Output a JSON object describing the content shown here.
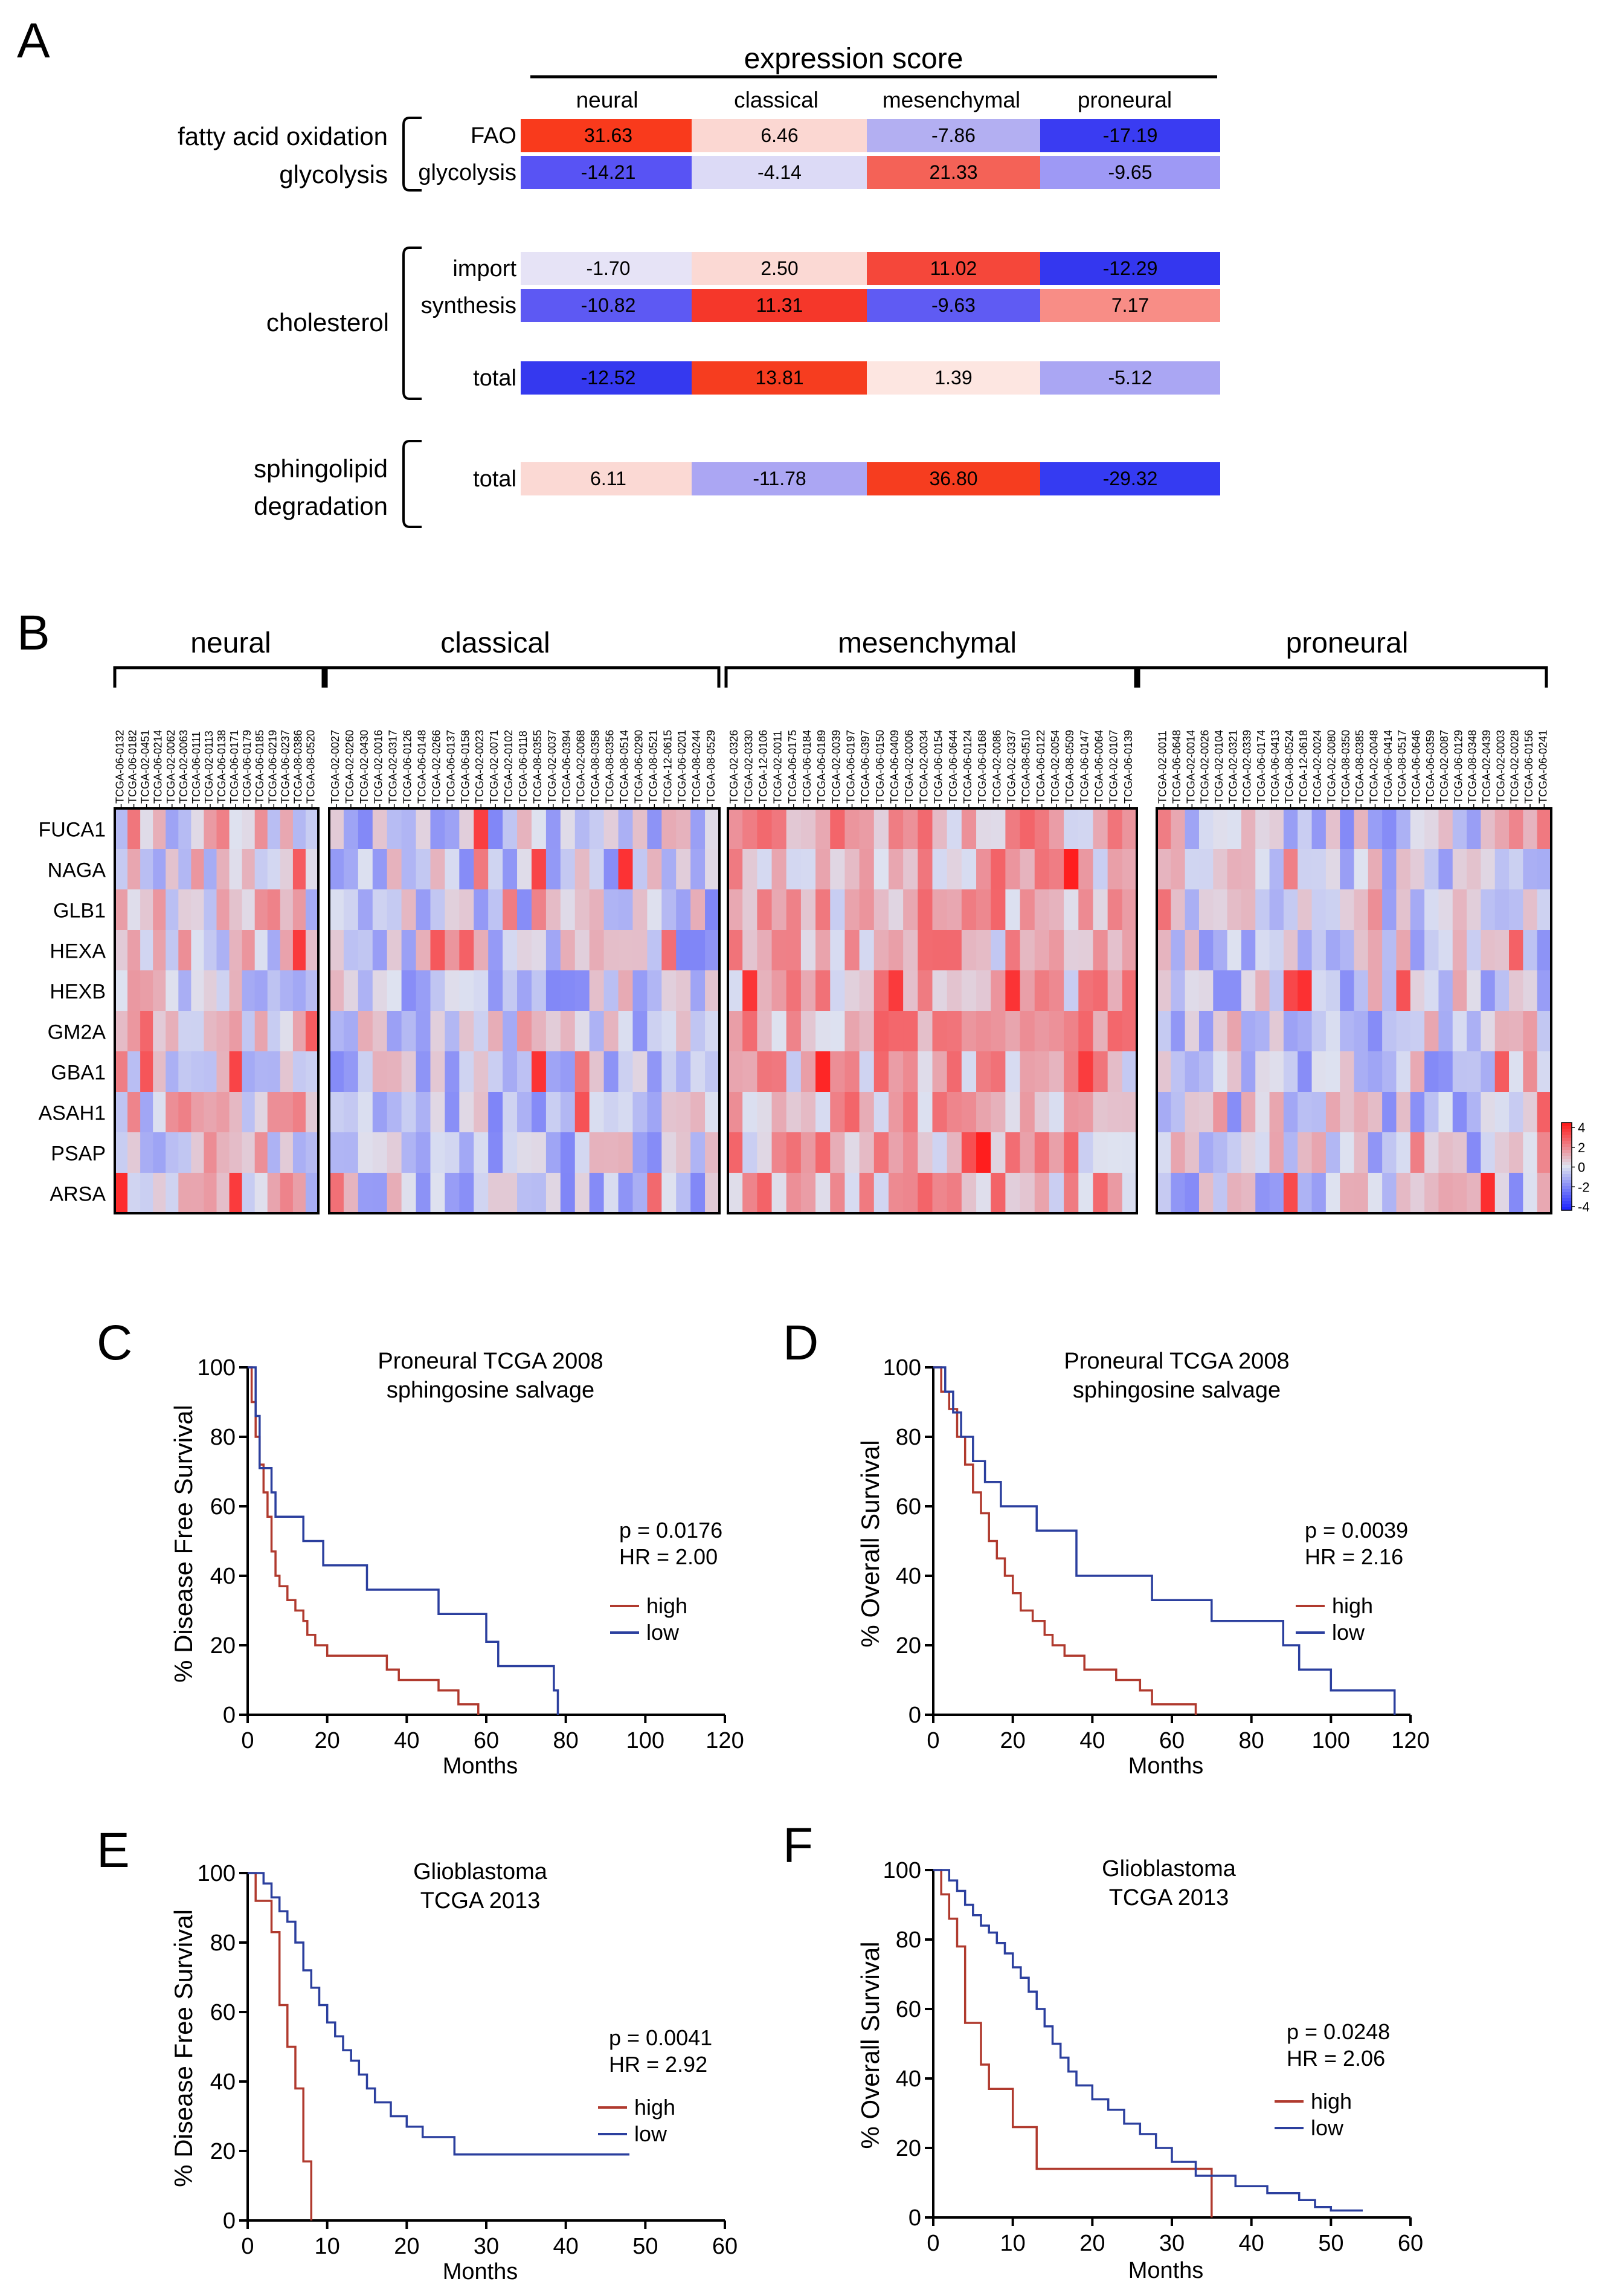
{
  "panel_a": {
    "letter": "A",
    "header": "expression score",
    "columns": [
      "neural",
      "classical",
      "mesenchymal",
      "proneural"
    ],
    "groups": [
      {
        "labels": [
          "fatty acid oxidation",
          "glycolysis"
        ],
        "rows": [
          {
            "label": "FAO",
            "values": [
              "31.63",
              "6.46",
              "-7.86",
              "-17.19"
            ],
            "colors": [
              "#f93a1c",
              "#fbd7d2",
              "#b3aff2",
              "#3a3cf2"
            ]
          },
          {
            "label": "glycolysis",
            "values": [
              "-14.21",
              "-4.14",
              "21.33",
              "-9.65"
            ],
            "colors": [
              "#5853f4",
              "#dcdaf6",
              "#f46257",
              "#9e99f5"
            ]
          }
        ]
      },
      {
        "labels": [
          "cholesterol"
        ],
        "rows": [
          {
            "label": "import",
            "values": [
              "-1.70",
              "2.50",
              "11.02",
              "-12.29"
            ],
            "colors": [
              "#e6e3f6",
              "#fbd9d4",
              "#f5473a",
              "#3437ef"
            ]
          },
          {
            "label": "synthesis",
            "values": [
              "-10.82",
              "11.31",
              "-9.63",
              "7.17"
            ],
            "colors": [
              "#5d59f3",
              "#f5372a",
              "#5f5bf3",
              "#f88d86"
            ]
          },
          {
            "label": "total",
            "values": [
              "-12.52",
              "13.81",
              "1.39",
              "-5.12"
            ],
            "colors": [
              "#3539ef",
              "#f63d1f",
              "#fde6e1",
              "#aaa6f3"
            ]
          }
        ]
      },
      {
        "labels": [
          "sphingolipid",
          "degradation"
        ],
        "rows": [
          {
            "label": "total",
            "values": [
              "6.11",
              "-11.78",
              "36.80",
              "-29.32"
            ],
            "colors": [
              "#fbd9d4",
              "#aba6f3",
              "#f63d1f",
              "#353bf2"
            ]
          }
        ]
      }
    ]
  },
  "panel_b": {
    "letter": "B",
    "groups": [
      {
        "name": "neural",
        "samples": [
          "TCGA-06-0132",
          "TCGA-06-0182",
          "TCGA-02-0451",
          "TCGA-06-0214",
          "TCGA-02-0062",
          "TCGA-02-0063",
          "TCGA-06-0111",
          "TCGA-02-0113",
          "TCGA-06-0138",
          "TCGA-06-0171",
          "TCGA-06-0179",
          "TCGA-06-0185",
          "TCGA-06-0219",
          "TCGA-06-0237",
          "TCGA-08-0386",
          "TCGA-08-0520"
        ]
      },
      {
        "name": "classical",
        "samples": [
          "TCGA-02-0027",
          "TCGA-02-0260",
          "TCGA-02-0430",
          "TCGA-02-0016",
          "TCGA-02-0317",
          "TCGA-06-0126",
          "TCGA-06-0148",
          "TCGA-02-0266",
          "TCGA-06-0137",
          "TCGA-06-0158",
          "TCGA-02-0023",
          "TCGA-02-0071",
          "TCGA-02-0102",
          "TCGA-06-0118",
          "TCGA-08-0355",
          "TCGA-02-0037",
          "TCGA-06-0394",
          "TCGA-02-0068",
          "TCGA-08-0358",
          "TCGA-08-0356",
          "TCGA-08-0514",
          "TCGA-06-0290",
          "TCGA-08-0521",
          "TCGA-12-0615",
          "TCGA-06-0201",
          "TCGA-08-0244",
          "TCGA-08-0529"
        ]
      },
      {
        "name": "mesenchymal",
        "samples": [
          "TCGA-02-0326",
          "TCGA-02-0330",
          "TCGA-12-0106",
          "TCGA-02-0011",
          "TCGA-06-0175",
          "TCGA-06-0184",
          "TCGA-06-0189",
          "TCGA-02-0039",
          "TCGA-06-0197",
          "TCGA-06-0397",
          "TCGA-06-0150",
          "TCGA-06-0409",
          "TCGA-02-0006",
          "TCGA-02-0034",
          "TCGA-06-0154",
          "TCGA-06-0644",
          "TCGA-06-0124",
          "TCGA-06-0168",
          "TCGA-02-0086",
          "TCGA-02-0337",
          "TCGA-08-0510",
          "TCGA-06-0122",
          "TCGA-02-0054",
          "TCGA-08-0509",
          "TCGA-06-0147",
          "TCGA-06-0064",
          "TCGA-02-0107",
          "TCGA-06-0139"
        ]
      },
      {
        "name": "proneural",
        "samples": [
          "TCGA-02-0011",
          "TCGA-06-0648",
          "TCGA-02-0014",
          "TCGA-02-0026",
          "TCGA-02-0104",
          "TCGA-02-0321",
          "TCGA-02-0339",
          "TCGA-06-0174",
          "TCGA-06-0413",
          "TCGA-08-0524",
          "TCGA-12-0618",
          "TCGA-02-0024",
          "TCGA-02-0080",
          "TCGA-08-0350",
          "TCGA-08-0385",
          "TCGA-02-0048",
          "TCGA-06-0414",
          "TCGA-08-0517",
          "TCGA-06-0646",
          "TCGA-06-0359",
          "TCGA-02-0087",
          "TCGA-06-0129",
          "TCGA-08-0348",
          "TCGA-02-0439",
          "TCGA-02-0003",
          "TCGA-02-0028",
          "TCGA-06-0156",
          "TCGA-06-0241"
        ]
      }
    ],
    "genes": [
      "FUCA1",
      "NAGA",
      "GLB1",
      "HEXA",
      "HEXB",
      "GM2A",
      "GBA1",
      "ASAH1",
      "PSAP",
      "ARSA"
    ],
    "colorbar_ticks": [
      "4",
      "2",
      "0",
      "-2",
      "-4"
    ]
  },
  "chart_data": [
    {
      "id": "C",
      "type": "line",
      "title": [
        "Proneural TCGA 2008",
        "sphingosine salvage"
      ],
      "xlabel": "Months",
      "ylabel": "% Disease Free Survival",
      "xlim": [
        0,
        120
      ],
      "ylim": [
        0,
        100
      ],
      "xticks": [
        "0",
        "20",
        "40",
        "60",
        "80",
        "100",
        "120"
      ],
      "yticks": [
        "0",
        "20",
        "40",
        "60",
        "80",
        "100"
      ],
      "stats": [
        "p = 0.0176",
        "HR = 2.00"
      ],
      "series": [
        {
          "name": "high",
          "color": "#b03a2e",
          "points": [
            [
              0,
              100
            ],
            [
              1,
              90
            ],
            [
              2,
              80
            ],
            [
              3,
              72
            ],
            [
              4,
              64
            ],
            [
              5,
              57
            ],
            [
              6,
              47
            ],
            [
              7,
              40
            ],
            [
              8,
              37
            ],
            [
              10,
              33
            ],
            [
              12,
              30
            ],
            [
              14,
              27
            ],
            [
              15,
              23
            ],
            [
              17,
              20
            ],
            [
              20,
              17
            ],
            [
              35,
              13
            ],
            [
              38,
              10
            ],
            [
              48,
              7
            ],
            [
              53,
              3
            ],
            [
              58,
              0
            ]
          ]
        },
        {
          "name": "low",
          "color": "#2b3f9e",
          "points": [
            [
              0,
              100
            ],
            [
              2,
              86
            ],
            [
              3,
              71
            ],
            [
              6,
              64
            ],
            [
              7,
              57
            ],
            [
              14,
              50
            ],
            [
              19,
              43
            ],
            [
              30,
              36
            ],
            [
              48,
              29
            ],
            [
              60,
              21
            ],
            [
              63,
              14
            ],
            [
              77,
              7
            ],
            [
              78,
              0
            ]
          ]
        }
      ]
    },
    {
      "id": "D",
      "type": "line",
      "title": [
        "Proneural TCGA 2008",
        "sphingosine salvage"
      ],
      "xlabel": "Months",
      "ylabel": "% Overall Survival",
      "xlim": [
        0,
        120
      ],
      "ylim": [
        0,
        100
      ],
      "xticks": [
        "0",
        "20",
        "40",
        "60",
        "80",
        "100",
        "120"
      ],
      "yticks": [
        "0",
        "20",
        "40",
        "60",
        "80",
        "100"
      ],
      "stats": [
        "p = 0.0039",
        "HR = 2.16"
      ],
      "series": [
        {
          "name": "high",
          "color": "#b03a2e",
          "points": [
            [
              0,
              100
            ],
            [
              2,
              93
            ],
            [
              4,
              88
            ],
            [
              6,
              80
            ],
            [
              8,
              72
            ],
            [
              10,
              64
            ],
            [
              12,
              58
            ],
            [
              14,
              50
            ],
            [
              16,
              45
            ],
            [
              18,
              40
            ],
            [
              20,
              35
            ],
            [
              22,
              30
            ],
            [
              25,
              27
            ],
            [
              28,
              23
            ],
            [
              30,
              20
            ],
            [
              33,
              17
            ],
            [
              38,
              13
            ],
            [
              46,
              10
            ],
            [
              52,
              7
            ],
            [
              55,
              3
            ],
            [
              66,
              0
            ]
          ]
        },
        {
          "name": "low",
          "color": "#2b3f9e",
          "points": [
            [
              0,
              100
            ],
            [
              3,
              93
            ],
            [
              5,
              87
            ],
            [
              7,
              80
            ],
            [
              10,
              73
            ],
            [
              13,
              67
            ],
            [
              17,
              60
            ],
            [
              26,
              53
            ],
            [
              36,
              40
            ],
            [
              55,
              33
            ],
            [
              70,
              27
            ],
            [
              88,
              20
            ],
            [
              92,
              13
            ],
            [
              100,
              7
            ],
            [
              116,
              0
            ]
          ]
        }
      ]
    },
    {
      "id": "E",
      "type": "line",
      "title": [
        "Glioblastoma",
        "TCGA 2013"
      ],
      "xlabel": "Months",
      "ylabel": "% Disease Free Survival",
      "xlim": [
        0,
        60
      ],
      "ylim": [
        0,
        100
      ],
      "xticks": [
        "0",
        "10",
        "20",
        "30",
        "40",
        "50",
        "60"
      ],
      "yticks": [
        "0",
        "20",
        "40",
        "60",
        "80",
        "100"
      ],
      "stats": [
        "p = 0.0041",
        "HR = 2.92"
      ],
      "series": [
        {
          "name": "high",
          "color": "#b03a2e",
          "points": [
            [
              0,
              100
            ],
            [
              1,
              92
            ],
            [
              3,
              83
            ],
            [
              4,
              62
            ],
            [
              5,
              50
            ],
            [
              6,
              38
            ],
            [
              7,
              17
            ],
            [
              8,
              0
            ]
          ]
        },
        {
          "name": "low",
          "color": "#2b3f9e",
          "points": [
            [
              0,
              100
            ],
            [
              2,
              97
            ],
            [
              3,
              93
            ],
            [
              4,
              89
            ],
            [
              5,
              86
            ],
            [
              6,
              80
            ],
            [
              7,
              72
            ],
            [
              8,
              67
            ],
            [
              9,
              62
            ],
            [
              10,
              57
            ],
            [
              11,
              53
            ],
            [
              12,
              49
            ],
            [
              13,
              46
            ],
            [
              14,
              42
            ],
            [
              15,
              38
            ],
            [
              16,
              34
            ],
            [
              18,
              30
            ],
            [
              20,
              27
            ],
            [
              22,
              24
            ],
            [
              26,
              19
            ],
            [
              48,
              19
            ]
          ]
        }
      ]
    },
    {
      "id": "F",
      "type": "line",
      "title": [
        "Glioblastoma",
        "TCGA 2013"
      ],
      "xlabel": "Months",
      "ylabel": "% Overall Survival",
      "xlim": [
        0,
        60
      ],
      "ylim": [
        0,
        100
      ],
      "xticks": [
        "0",
        "10",
        "20",
        "30",
        "40",
        "50",
        "60"
      ],
      "yticks": [
        "0",
        "20",
        "40",
        "60",
        "80",
        "100"
      ],
      "stats": [
        "p = 0.0248",
        "HR = 2.06"
      ],
      "series": [
        {
          "name": "high",
          "color": "#b03a2e",
          "points": [
            [
              0,
              100
            ],
            [
              1,
              93
            ],
            [
              2,
              86
            ],
            [
              3,
              78
            ],
            [
              4,
              56
            ],
            [
              6,
              44
            ],
            [
              7,
              37
            ],
            [
              10,
              26
            ],
            [
              13,
              14
            ],
            [
              35,
              0
            ]
          ]
        },
        {
          "name": "low",
          "color": "#2b3f9e",
          "points": [
            [
              0,
              100
            ],
            [
              2,
              97
            ],
            [
              3,
              94
            ],
            [
              4,
              90
            ],
            [
              5,
              87
            ],
            [
              6,
              84
            ],
            [
              7,
              82
            ],
            [
              8,
              79
            ],
            [
              9,
              76
            ],
            [
              10,
              72
            ],
            [
              11,
              69
            ],
            [
              12,
              65
            ],
            [
              13,
              60
            ],
            [
              14,
              55
            ],
            [
              15,
              50
            ],
            [
              16,
              46
            ],
            [
              17,
              42
            ],
            [
              18,
              38
            ],
            [
              20,
              34
            ],
            [
              22,
              31
            ],
            [
              24,
              27
            ],
            [
              26,
              24
            ],
            [
              28,
              20
            ],
            [
              30,
              16
            ],
            [
              33,
              12
            ],
            [
              38,
              9
            ],
            [
              42,
              7
            ],
            [
              46,
              5
            ],
            [
              48,
              3
            ],
            [
              50,
              2
            ],
            [
              54,
              2
            ]
          ]
        }
      ]
    }
  ]
}
